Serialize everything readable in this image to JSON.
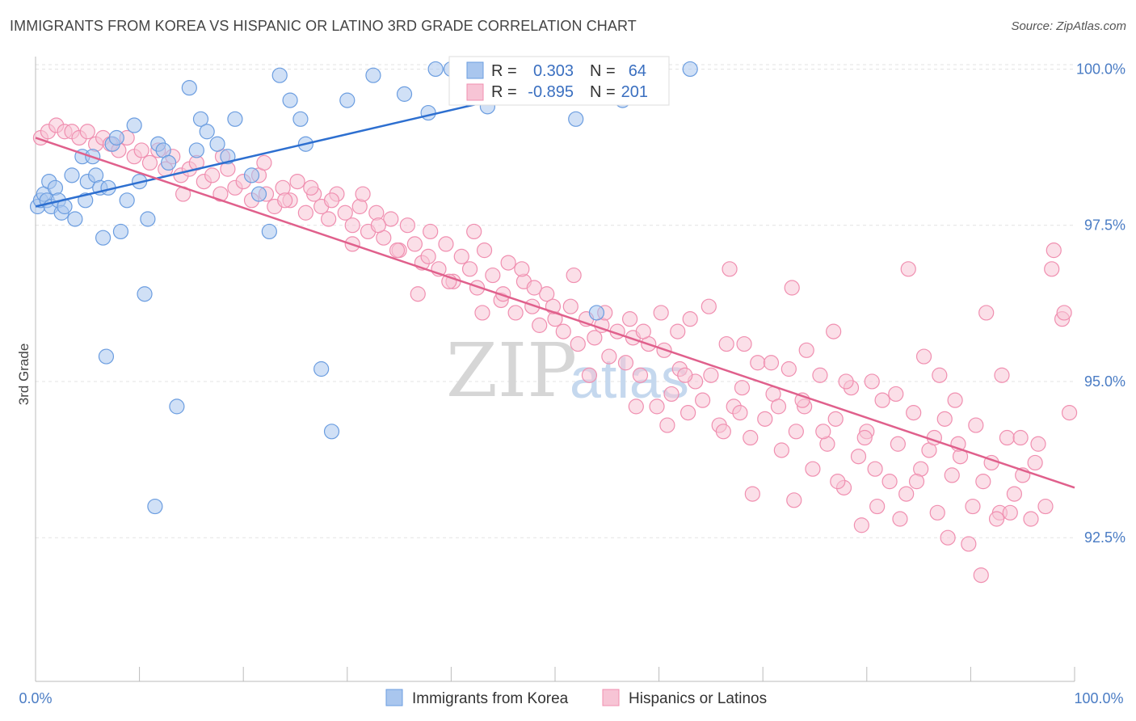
{
  "title": "IMMIGRANTS FROM KOREA VS HISPANIC OR LATINO 3RD GRADE CORRELATION CHART",
  "source": "Source: ZipAtlas.com",
  "watermark": {
    "part1": "ZIP",
    "part2": "atlas"
  },
  "colors": {
    "blue": "#6b9de0",
    "blue_fill": "#a9c6ee",
    "blue_line": "#2d6fd0",
    "pink": "#f08fb0",
    "pink_fill": "#f7c4d5",
    "pink_line": "#e0608c",
    "grid": "#e3e3e3"
  },
  "legend": {
    "r_label": "R =",
    "n_label": "N =",
    "series1": {
      "r": "0.303",
      "n": "64"
    },
    "series2": {
      "r": "-0.895",
      "n": "201"
    }
  },
  "chart_data": {
    "type": "scatter",
    "title": "IMMIGRANTS FROM KOREA VS HISPANIC OR LATINO 3RD GRADE CORRELATION CHART",
    "xlabel": "",
    "ylabel": "3rd Grade",
    "xlim": [
      0,
      100
    ],
    "ylim": [
      90.2,
      100.2
    ],
    "x_tick_labels": [
      "0.0%",
      "100.0%"
    ],
    "y_ticks": [
      92.5,
      95.0,
      97.5,
      100.0
    ],
    "y_tick_labels": [
      "92.5%",
      "95.0%",
      "97.5%",
      "100.0%"
    ],
    "series": [
      {
        "name": "Immigrants from Korea",
        "r": 0.303,
        "n": 64,
        "trend": [
          [
            0,
            97.8
          ],
          [
            57,
            100.0
          ]
        ],
        "points": [
          [
            0.2,
            97.8
          ],
          [
            0.5,
            97.9
          ],
          [
            0.8,
            98.0
          ],
          [
            1.1,
            97.9
          ],
          [
            1.3,
            98.2
          ],
          [
            1.5,
            97.8
          ],
          [
            1.9,
            98.1
          ],
          [
            2.2,
            97.9
          ],
          [
            2.5,
            97.7
          ],
          [
            2.8,
            97.8
          ],
          [
            3.5,
            98.3
          ],
          [
            3.8,
            97.6
          ],
          [
            4.5,
            98.6
          ],
          [
            4.8,
            97.9
          ],
          [
            5.0,
            98.2
          ],
          [
            5.5,
            98.6
          ],
          [
            5.8,
            98.3
          ],
          [
            6.2,
            98.1
          ],
          [
            6.5,
            97.3
          ],
          [
            7.0,
            98.1
          ],
          [
            7.4,
            98.8
          ],
          [
            7.8,
            98.9
          ],
          [
            8.2,
            97.4
          ],
          [
            8.8,
            97.9
          ],
          [
            9.5,
            99.1
          ],
          [
            10.0,
            98.2
          ],
          [
            10.5,
            96.4
          ],
          [
            10.8,
            97.6
          ],
          [
            11.8,
            98.8
          ],
          [
            12.3,
            98.7
          ],
          [
            12.8,
            98.5
          ],
          [
            13.6,
            94.6
          ],
          [
            14.8,
            99.7
          ],
          [
            15.5,
            98.7
          ],
          [
            15.9,
            99.2
          ],
          [
            16.5,
            99.0
          ],
          [
            17.5,
            98.8
          ],
          [
            18.5,
            98.6
          ],
          [
            19.2,
            99.2
          ],
          [
            20.8,
            98.3
          ],
          [
            21.5,
            98.0
          ],
          [
            22.5,
            97.4
          ],
          [
            23.5,
            99.9
          ],
          [
            24.5,
            99.5
          ],
          [
            25.5,
            99.2
          ],
          [
            26.0,
            98.8
          ],
          [
            27.5,
            95.2
          ],
          [
            28.5,
            94.2
          ],
          [
            30.0,
            99.5
          ],
          [
            32.5,
            99.9
          ],
          [
            35.5,
            99.6
          ],
          [
            37.8,
            99.3
          ],
          [
            38.5,
            100.0
          ],
          [
            40.0,
            100.0
          ],
          [
            41.2,
            100.0
          ],
          [
            43.5,
            99.4
          ],
          [
            45.5,
            100.0
          ],
          [
            49.5,
            99.8
          ],
          [
            52.0,
            99.2
          ],
          [
            54.0,
            96.1
          ],
          [
            56.5,
            99.5
          ],
          [
            63.0,
            100.0
          ],
          [
            6.8,
            95.4
          ],
          [
            11.5,
            93.0
          ]
        ]
      },
      {
        "name": "Hispanics or Latinos",
        "r": -0.895,
        "n": 201,
        "trend": [
          [
            0,
            98.9
          ],
          [
            100,
            93.3
          ]
        ],
        "points": [
          [
            0.5,
            98.9
          ],
          [
            1.2,
            99.0
          ],
          [
            2.0,
            99.1
          ],
          [
            2.8,
            99.0
          ],
          [
            3.5,
            99.0
          ],
          [
            4.2,
            98.9
          ],
          [
            5.0,
            99.0
          ],
          [
            5.8,
            98.8
          ],
          [
            6.5,
            98.9
          ],
          [
            7.2,
            98.8
          ],
          [
            8.0,
            98.7
          ],
          [
            8.8,
            98.9
          ],
          [
            9.5,
            98.6
          ],
          [
            10.2,
            98.7
          ],
          [
            11.0,
            98.5
          ],
          [
            11.8,
            98.7
          ],
          [
            12.5,
            98.4
          ],
          [
            13.2,
            98.6
          ],
          [
            14.0,
            98.3
          ],
          [
            14.8,
            98.4
          ],
          [
            15.5,
            98.5
          ],
          [
            16.2,
            98.2
          ],
          [
            17.0,
            98.3
          ],
          [
            17.8,
            98.0
          ],
          [
            18.5,
            98.4
          ],
          [
            19.2,
            98.1
          ],
          [
            20.0,
            98.2
          ],
          [
            20.8,
            97.9
          ],
          [
            21.5,
            98.3
          ],
          [
            22.2,
            98.0
          ],
          [
            23.0,
            97.8
          ],
          [
            23.8,
            98.1
          ],
          [
            24.5,
            97.9
          ],
          [
            25.2,
            98.2
          ],
          [
            26.0,
            97.7
          ],
          [
            26.8,
            98.0
          ],
          [
            27.5,
            97.8
          ],
          [
            28.2,
            97.6
          ],
          [
            29.0,
            98.0
          ],
          [
            29.8,
            97.7
          ],
          [
            30.5,
            97.5
          ],
          [
            31.2,
            97.8
          ],
          [
            32.0,
            97.4
          ],
          [
            32.8,
            97.7
          ],
          [
            33.5,
            97.3
          ],
          [
            34.2,
            97.6
          ],
          [
            35.0,
            97.1
          ],
          [
            35.8,
            97.5
          ],
          [
            36.5,
            97.2
          ],
          [
            37.2,
            96.9
          ],
          [
            38.0,
            97.4
          ],
          [
            38.8,
            96.8
          ],
          [
            39.5,
            97.2
          ],
          [
            40.2,
            96.6
          ],
          [
            41.0,
            97.0
          ],
          [
            41.8,
            96.8
          ],
          [
            42.5,
            96.5
          ],
          [
            43.2,
            97.1
          ],
          [
            44.0,
            96.7
          ],
          [
            44.8,
            96.3
          ],
          [
            45.5,
            96.9
          ],
          [
            46.2,
            96.1
          ],
          [
            47.0,
            96.6
          ],
          [
            47.8,
            96.2
          ],
          [
            48.5,
            95.9
          ],
          [
            49.2,
            96.4
          ],
          [
            50.0,
            96.0
          ],
          [
            50.8,
            95.8
          ],
          [
            51.5,
            96.2
          ],
          [
            52.2,
            95.6
          ],
          [
            53.0,
            96.0
          ],
          [
            53.8,
            95.7
          ],
          [
            54.5,
            95.9
          ],
          [
            55.2,
            95.4
          ],
          [
            56.0,
            95.8
          ],
          [
            56.8,
            95.3
          ],
          [
            57.5,
            95.7
          ],
          [
            58.2,
            95.1
          ],
          [
            59.0,
            95.6
          ],
          [
            59.8,
            94.6
          ],
          [
            60.5,
            95.5
          ],
          [
            61.2,
            94.8
          ],
          [
            62.0,
            95.2
          ],
          [
            62.8,
            94.5
          ],
          [
            63.5,
            95.0
          ],
          [
            64.2,
            94.7
          ],
          [
            65.0,
            95.1
          ],
          [
            65.8,
            94.3
          ],
          [
            66.5,
            95.6
          ],
          [
            67.2,
            94.6
          ],
          [
            68.0,
            94.9
          ],
          [
            68.8,
            94.1
          ],
          [
            69.5,
            95.3
          ],
          [
            70.2,
            94.4
          ],
          [
            71.0,
            94.8
          ],
          [
            71.8,
            93.9
          ],
          [
            72.5,
            95.2
          ],
          [
            73.2,
            94.2
          ],
          [
            74.0,
            94.6
          ],
          [
            74.8,
            93.6
          ],
          [
            75.5,
            95.1
          ],
          [
            76.2,
            94.0
          ],
          [
            77.0,
            94.4
          ],
          [
            77.8,
            93.3
          ],
          [
            78.5,
            94.9
          ],
          [
            79.2,
            93.8
          ],
          [
            80.0,
            94.2
          ],
          [
            80.8,
            93.6
          ],
          [
            81.5,
            94.7
          ],
          [
            82.2,
            93.4
          ],
          [
            83.0,
            94.0
          ],
          [
            83.8,
            93.2
          ],
          [
            84.5,
            94.5
          ],
          [
            85.2,
            93.6
          ],
          [
            86.0,
            93.9
          ],
          [
            86.8,
            92.9
          ],
          [
            87.5,
            94.4
          ],
          [
            88.2,
            93.5
          ],
          [
            89.0,
            93.8
          ],
          [
            89.8,
            92.4
          ],
          [
            90.5,
            94.3
          ],
          [
            91.2,
            93.4
          ],
          [
            92.0,
            93.7
          ],
          [
            92.8,
            92.9
          ],
          [
            93.5,
            94.1
          ],
          [
            94.2,
            93.2
          ],
          [
            95.0,
            93.5
          ],
          [
            95.8,
            92.8
          ],
          [
            96.5,
            94.0
          ],
          [
            97.2,
            93.0
          ],
          [
            98.0,
            97.1
          ],
          [
            98.8,
            96.0
          ],
          [
            99.5,
            94.5
          ],
          [
            22.0,
            98.5
          ],
          [
            26.5,
            98.1
          ],
          [
            31.5,
            98.0
          ],
          [
            36.8,
            96.4
          ],
          [
            42.2,
            97.4
          ],
          [
            46.8,
            96.8
          ],
          [
            51.8,
            96.7
          ],
          [
            57.2,
            96.0
          ],
          [
            60.2,
            96.1
          ],
          [
            64.8,
            96.2
          ],
          [
            66.8,
            96.8
          ],
          [
            68.2,
            95.6
          ],
          [
            70.8,
            95.3
          ],
          [
            72.8,
            96.5
          ],
          [
            74.2,
            95.5
          ],
          [
            76.8,
            95.8
          ],
          [
            78.0,
            95.0
          ],
          [
            80.5,
            95.0
          ],
          [
            82.8,
            94.8
          ],
          [
            84.0,
            96.8
          ],
          [
            85.5,
            95.4
          ],
          [
            87.0,
            95.1
          ],
          [
            88.5,
            94.7
          ],
          [
            91.5,
            96.1
          ],
          [
            93.0,
            95.1
          ],
          [
            97.8,
            96.8
          ],
          [
            99.0,
            96.1
          ],
          [
            14.2,
            98.0
          ],
          [
            18.0,
            98.6
          ],
          [
            24.0,
            97.9
          ],
          [
            28.5,
            97.9
          ],
          [
            33.0,
            97.5
          ],
          [
            37.8,
            97.0
          ],
          [
            43.0,
            96.1
          ],
          [
            48.0,
            96.5
          ],
          [
            53.3,
            95.1
          ],
          [
            58.5,
            95.8
          ],
          [
            63.0,
            96.0
          ],
          [
            67.8,
            94.5
          ],
          [
            73.8,
            94.7
          ],
          [
            79.8,
            94.1
          ],
          [
            86.5,
            94.1
          ],
          [
            92.5,
            92.8
          ],
          [
            94.8,
            94.1
          ],
          [
            96.2,
            93.7
          ],
          [
            30.5,
            97.2
          ],
          [
            34.8,
            97.1
          ],
          [
            39.8,
            96.6
          ],
          [
            45.0,
            96.4
          ],
          [
            49.8,
            96.2
          ],
          [
            54.8,
            96.1
          ],
          [
            61.8,
            95.8
          ],
          [
            66.2,
            94.2
          ],
          [
            71.5,
            94.6
          ],
          [
            75.8,
            94.2
          ],
          [
            81.0,
            93.0
          ],
          [
            84.8,
            93.4
          ],
          [
            88.8,
            94.0
          ],
          [
            90.2,
            93.0
          ],
          [
            93.8,
            92.9
          ],
          [
            62.5,
            95.1
          ],
          [
            57.8,
            94.6
          ],
          [
            60.8,
            94.3
          ],
          [
            69.0,
            93.2
          ],
          [
            73.0,
            93.1
          ],
          [
            77.2,
            93.4
          ],
          [
            79.5,
            92.7
          ],
          [
            83.2,
            92.8
          ],
          [
            87.8,
            92.5
          ],
          [
            91.0,
            91.9
          ]
        ]
      }
    ]
  },
  "bottom_legend": {
    "item1": "Immigrants from Korea",
    "item2": "Hispanics or Latinos"
  }
}
